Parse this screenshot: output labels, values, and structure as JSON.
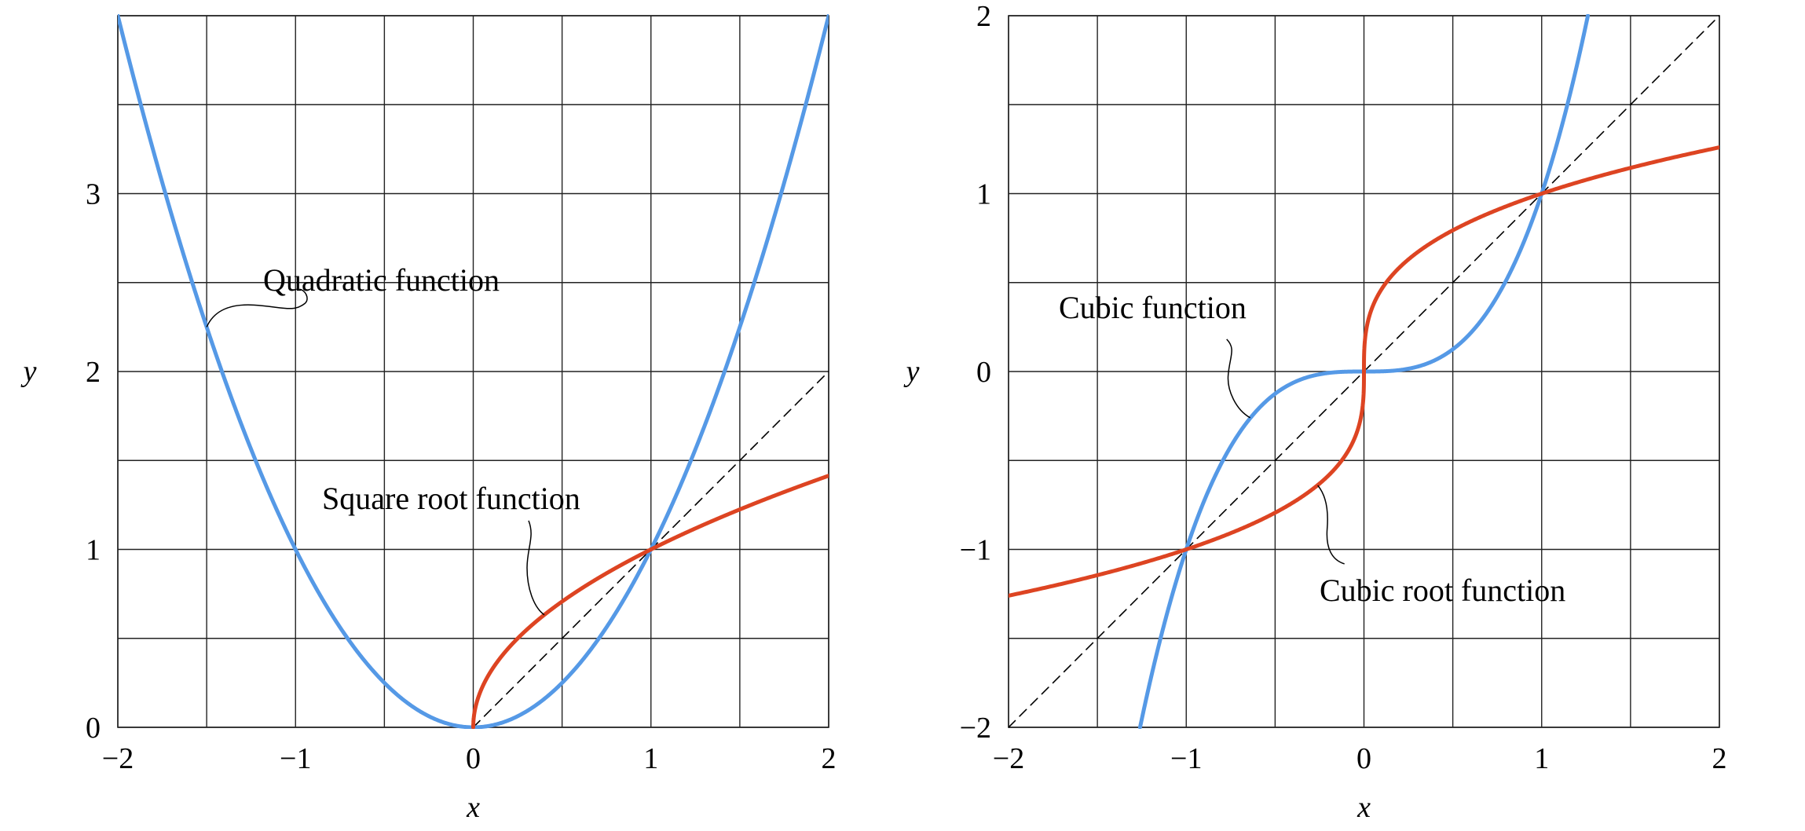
{
  "chart_data": [
    {
      "type": "line",
      "title": "",
      "xlabel": "x",
      "ylabel": "y",
      "xlim": [
        -2,
        2
      ],
      "ylim": [
        0,
        4
      ],
      "grid": true,
      "xticks": [
        -2,
        -1.5,
        -1,
        -0.5,
        0,
        0.5,
        1,
        1.5,
        2
      ],
      "yticks": [
        0,
        0.5,
        1,
        1.5,
        2,
        2.5,
        3,
        3.5,
        4
      ],
      "xtick_labels": [
        {
          "value": -2,
          "label": "−2"
        },
        {
          "value": -1,
          "label": "−1"
        },
        {
          "value": 0,
          "label": "0"
        },
        {
          "value": 1,
          "label": "1"
        },
        {
          "value": 2,
          "label": "2"
        }
      ],
      "ytick_labels": [
        {
          "value": 0,
          "label": "0"
        },
        {
          "value": 1,
          "label": "1"
        },
        {
          "value": 2,
          "label": "2"
        },
        {
          "value": 3,
          "label": "3"
        }
      ],
      "series": [
        {
          "color": "#5599e6",
          "function": "x^2",
          "x": [
            -2,
            -1.5,
            -1,
            -0.5,
            0,
            0.5,
            1,
            1.5,
            2
          ],
          "y": [
            4,
            2.25,
            1,
            0.25,
            0,
            0.25,
            1,
            2.25,
            4
          ]
        },
        {
          "color": "#dd4422",
          "function": "sqrt(x)",
          "x": [
            0,
            0.25,
            0.5,
            1,
            1.5,
            2
          ],
          "y": [
            0,
            0.5,
            0.707,
            1,
            1.225,
            1.414
          ]
        },
        {
          "color": "#000000",
          "style": "dashed",
          "function": "x",
          "x": [
            0,
            2
          ],
          "y": [
            0,
            2
          ]
        }
      ],
      "annotations": [
        {
          "text": "Quadratic function",
          "target_x": -1.5,
          "target_y": 2.25
        },
        {
          "text": "Square root function",
          "target_x": 0.4,
          "target_y": 0.632
        }
      ]
    },
    {
      "type": "line",
      "title": "",
      "xlabel": "x",
      "ylabel": "y",
      "xlim": [
        -2,
        2
      ],
      "ylim": [
        -2,
        2
      ],
      "grid": true,
      "xticks": [
        -2,
        -1.5,
        -1,
        -0.5,
        0,
        0.5,
        1,
        1.5,
        2
      ],
      "yticks": [
        -2,
        -1.5,
        -1,
        -0.5,
        0,
        0.5,
        1,
        1.5,
        2
      ],
      "xtick_labels": [
        {
          "value": -2,
          "label": "−2"
        },
        {
          "value": -1,
          "label": "−1"
        },
        {
          "value": 0,
          "label": "0"
        },
        {
          "value": 1,
          "label": "1"
        },
        {
          "value": 2,
          "label": "2"
        }
      ],
      "ytick_labels": [
        {
          "value": -2,
          "label": "−2"
        },
        {
          "value": -1,
          "label": "−1"
        },
        {
          "value": 0,
          "label": "0"
        },
        {
          "value": 1,
          "label": "1"
        },
        {
          "value": 2,
          "label": "2"
        }
      ],
      "series": [
        {
          "color": "#5599e6",
          "function": "x^3",
          "x": [
            -1.26,
            -1,
            -0.5,
            0,
            0.5,
            1,
            1.26
          ],
          "y": [
            -2,
            -1,
            -0.125,
            0,
            0.125,
            1,
            2
          ]
        },
        {
          "color": "#dd4422",
          "function": "cbrt(x)",
          "x": [
            -2,
            -1,
            -0.5,
            0,
            0.5,
            1,
            2
          ],
          "y": [
            -1.26,
            -1,
            -0.794,
            0,
            0.794,
            1,
            1.26
          ]
        },
        {
          "color": "#000000",
          "style": "dashed",
          "function": "x",
          "x": [
            -2,
            2
          ],
          "y": [
            -2,
            2
          ]
        }
      ],
      "annotations": [
        {
          "text": "Cubic function",
          "target_x": -0.64,
          "target_y": -0.26
        },
        {
          "text": "Cubic root function",
          "target_x": -0.26,
          "target_y": -0.64
        }
      ]
    }
  ]
}
